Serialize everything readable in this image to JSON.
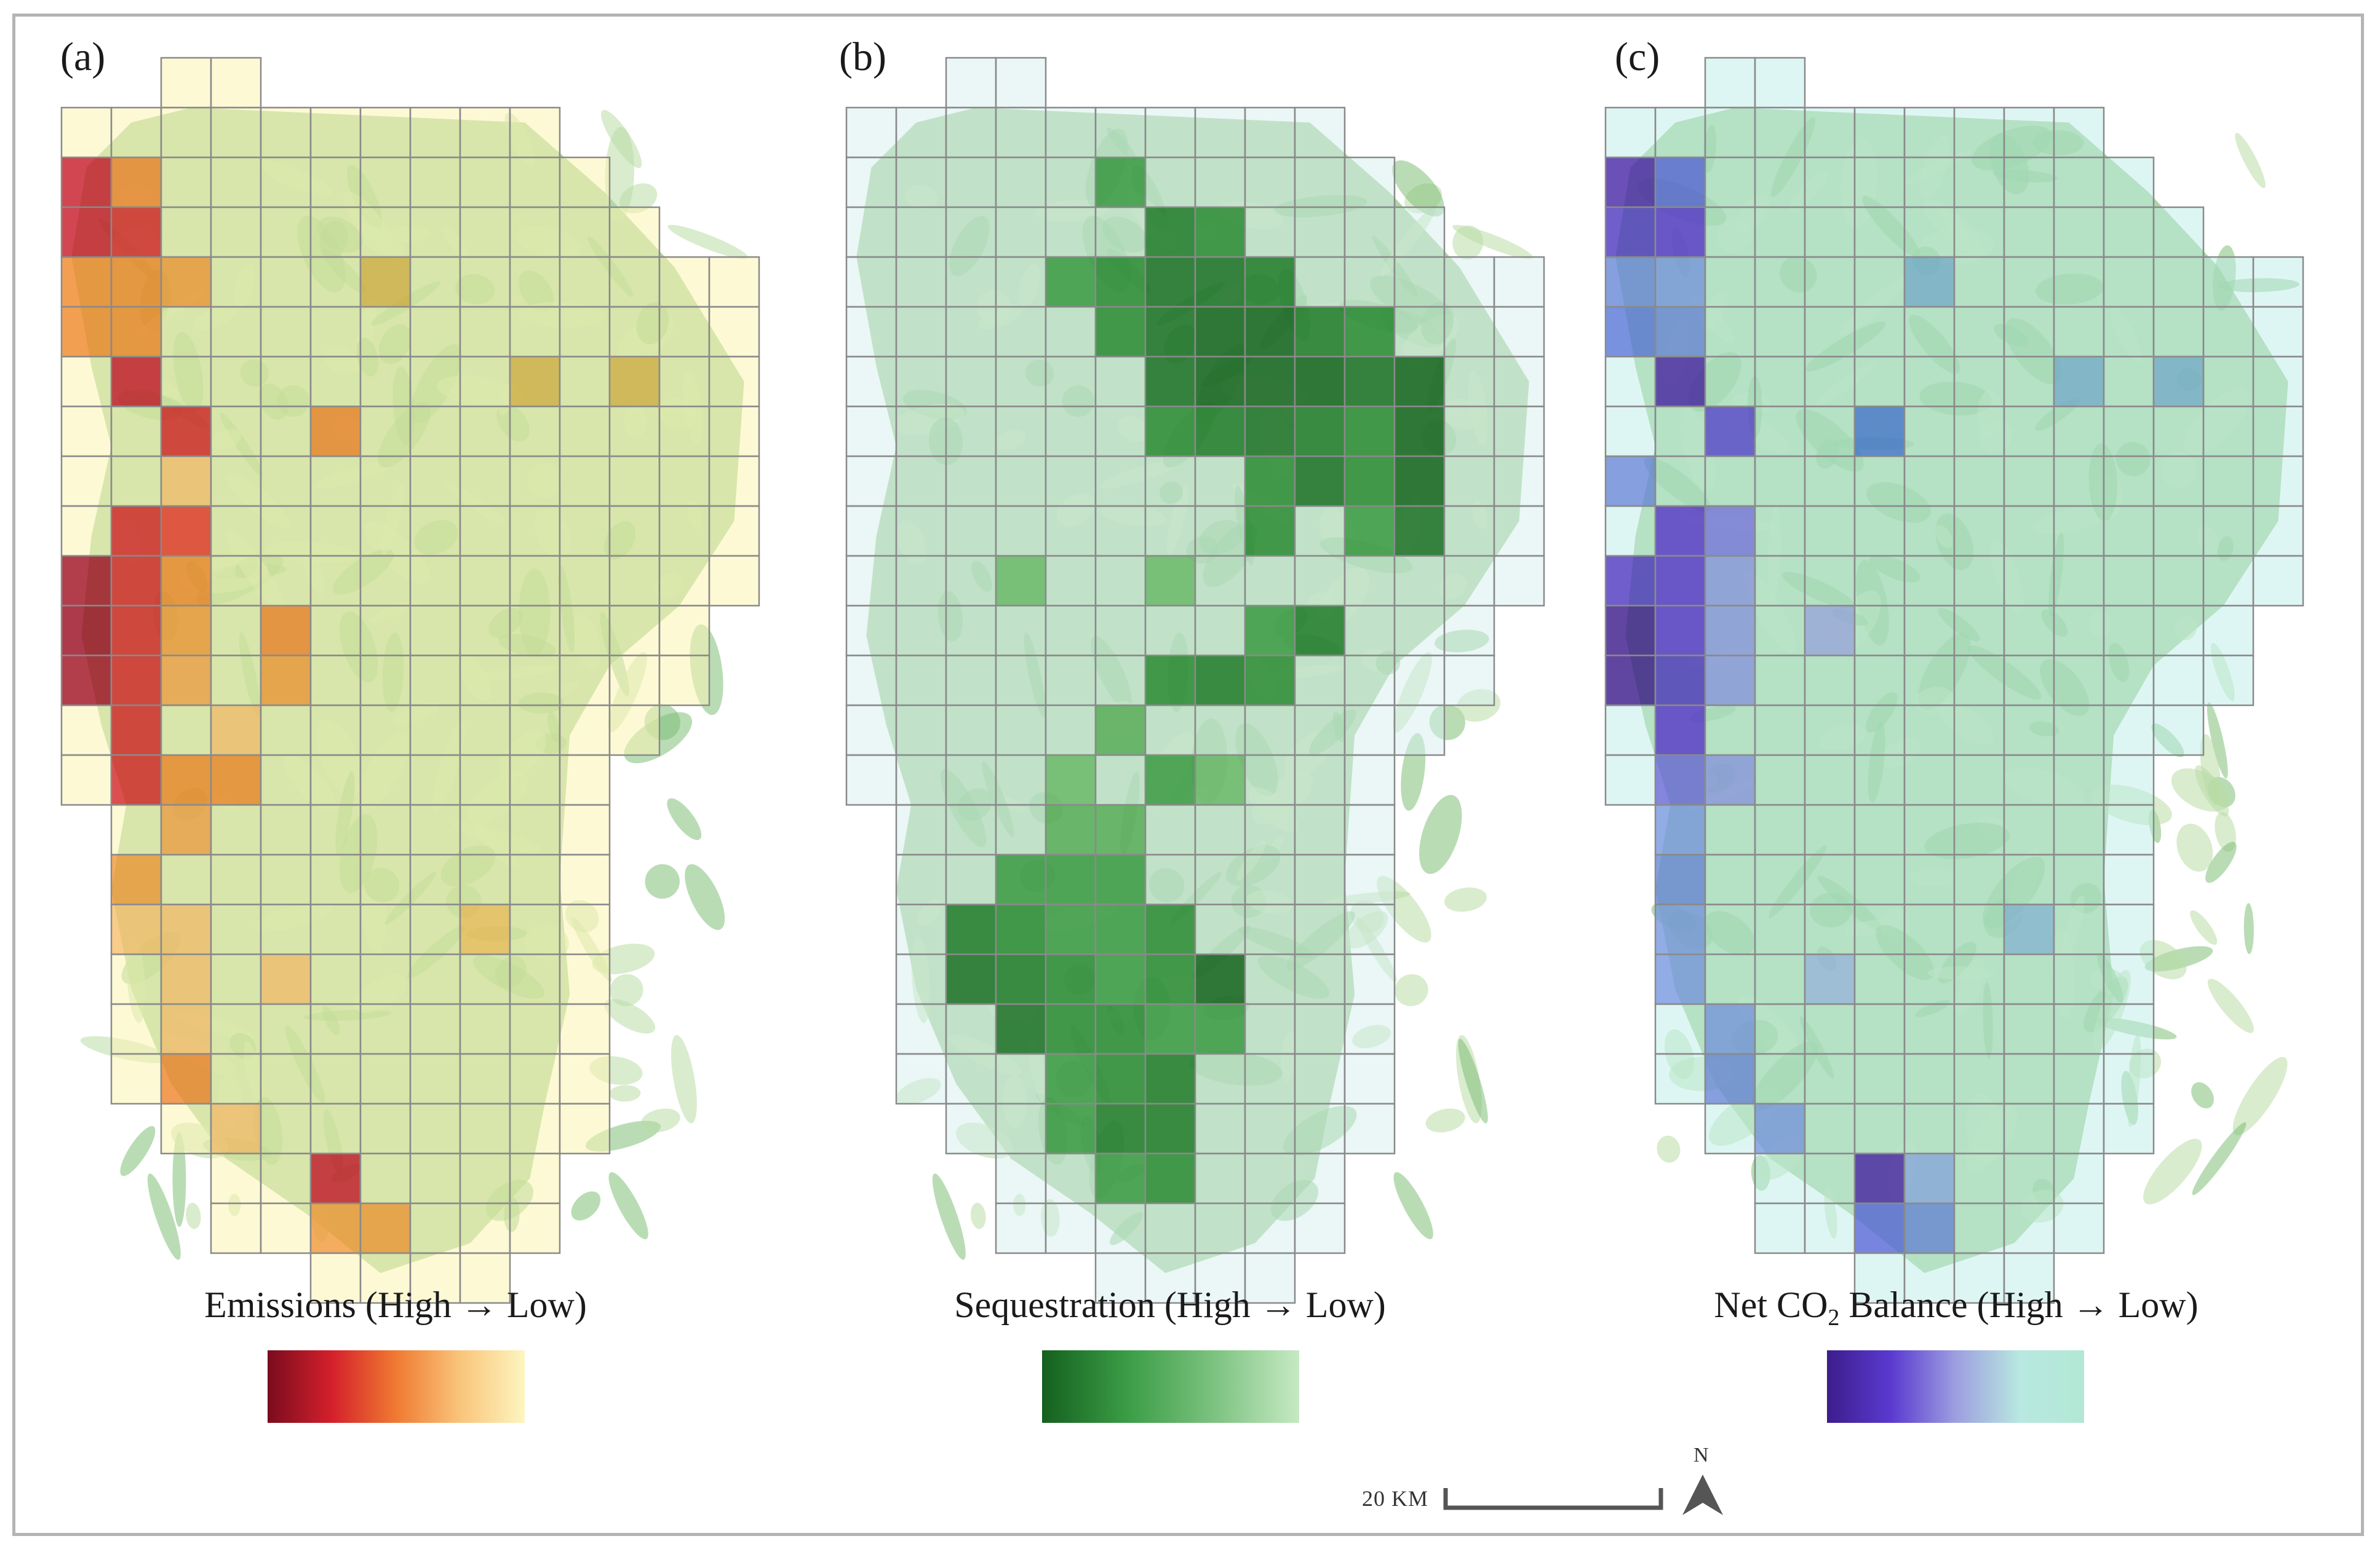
{
  "panels": [
    {
      "id": "a",
      "label": "(a)",
      "legend_title": "Emissions (High → Low)",
      "ramp": [
        "#7a0c1e",
        "#d4202b",
        "#f07a32",
        "#f9c57b",
        "#fdf5c0"
      ],
      "cell_scheme": "emissions",
      "basemap_color": "#9fce93"
    },
    {
      "id": "b",
      "label": "(b)",
      "legend_title": "Sequestration (High → Low)",
      "ramp": [
        "#14601f",
        "#3b9d46",
        "#7cc280",
        "#c6e9c3"
      ],
      "cell_scheme": "sequestration",
      "basemap_color": "#9fce93"
    },
    {
      "id": "c",
      "label": "(c)",
      "legend_title_main": "Net CO",
      "legend_title_sub": "2",
      "legend_title_rest": " Balance (High → Low)",
      "ramp": [
        "#3d1d8c",
        "#5a3ad0",
        "#9d9ee0",
        "#b8e8e0",
        "#b2e8d4"
      ],
      "cell_scheme": "net",
      "basemap_color": "#9fce93"
    }
  ],
  "scale_bar": {
    "label": "20 KM"
  },
  "north_arrow": {
    "label": "N"
  }
}
